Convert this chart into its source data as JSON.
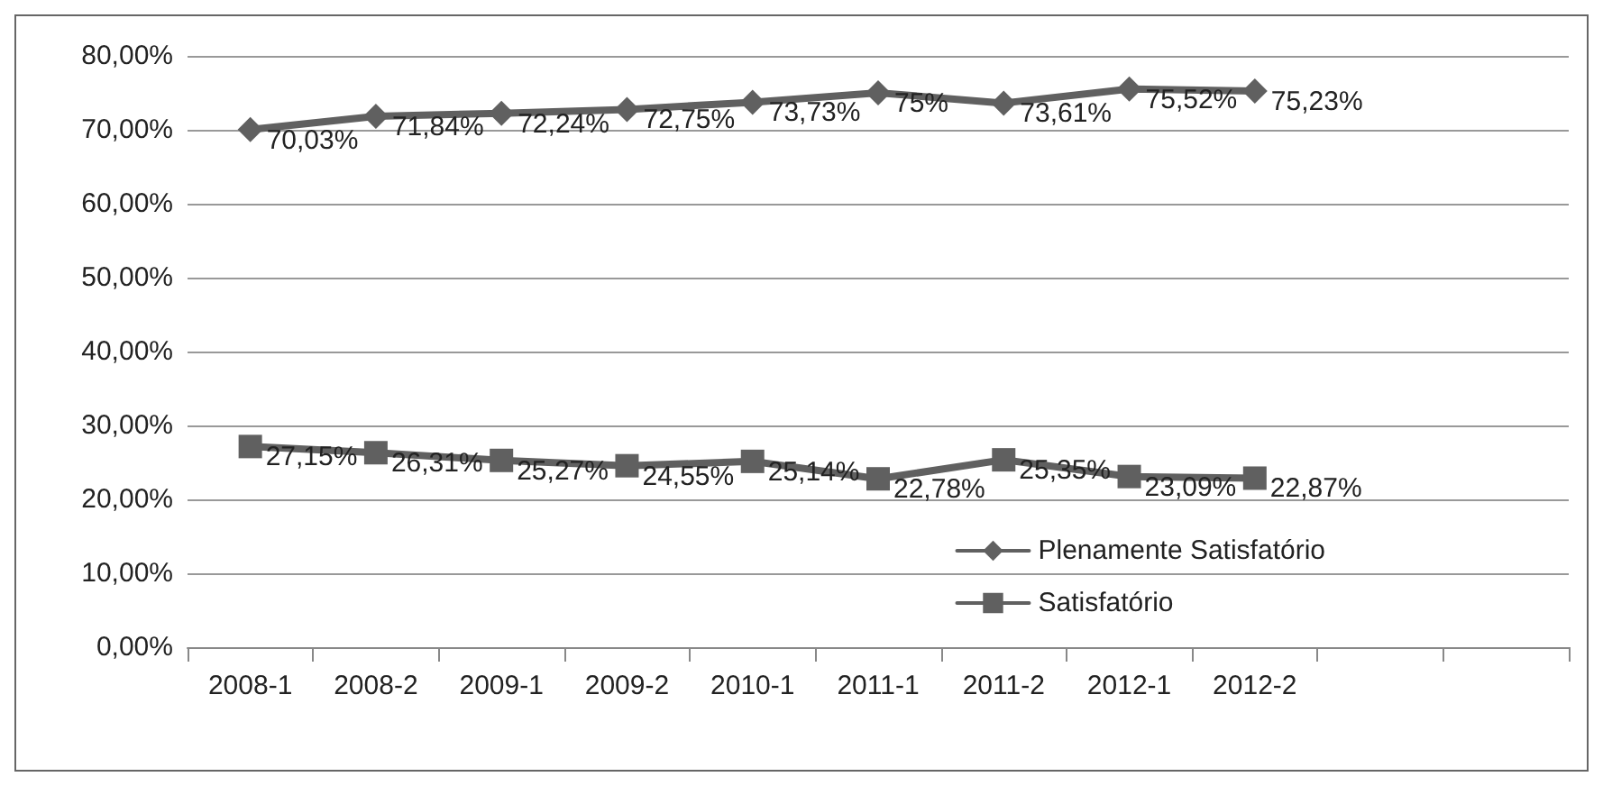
{
  "chart_data": {
    "type": "line",
    "categories": [
      "2008-1",
      "2008-2",
      "2009-1",
      "2009-2",
      "2010-1",
      "2011-1",
      "2011-2",
      "2012-1",
      "2012-2",
      null,
      null
    ],
    "series": [
      {
        "name": "Plenamente Satisfatório",
        "color": "#606060",
        "marker": "diamond",
        "values": [
          70.03,
          71.84,
          72.24,
          72.75,
          73.73,
          75,
          73.61,
          75.52,
          75.23,
          null,
          null
        ],
        "value_labels": [
          "70,03%",
          "71,84%",
          "72,24%",
          "72,75%",
          "73,73%",
          "75%",
          "73,61%",
          "75,52%",
          "75,23%",
          null,
          null
        ]
      },
      {
        "name": "Satisfatório",
        "color": "#606060",
        "marker": "square",
        "values": [
          27.15,
          26.31,
          25.27,
          24.55,
          25.14,
          22.78,
          25.35,
          23.09,
          22.87,
          null,
          null
        ],
        "value_labels": [
          "27,15%",
          "26,31%",
          "25,27%",
          "24,55%",
          "25,14%",
          "22,78%",
          "25,35%",
          "23,09%",
          "22,87%",
          null,
          null
        ]
      }
    ],
    "ylim": [
      0,
      80
    ],
    "yticks": [
      {
        "value": 0,
        "label": "0,00%"
      },
      {
        "value": 10,
        "label": "10,00%"
      },
      {
        "value": 20,
        "label": "20,00%"
      },
      {
        "value": 30,
        "label": "30,00%"
      },
      {
        "value": 40,
        "label": "40,00%"
      },
      {
        "value": 50,
        "label": "50,00%"
      },
      {
        "value": 60,
        "label": "60,00%"
      },
      {
        "value": 70,
        "label": "70,00%"
      },
      {
        "value": 80,
        "label": "80,00%"
      }
    ],
    "grid": "y",
    "legend": "bottom right",
    "line_style": "solid"
  }
}
